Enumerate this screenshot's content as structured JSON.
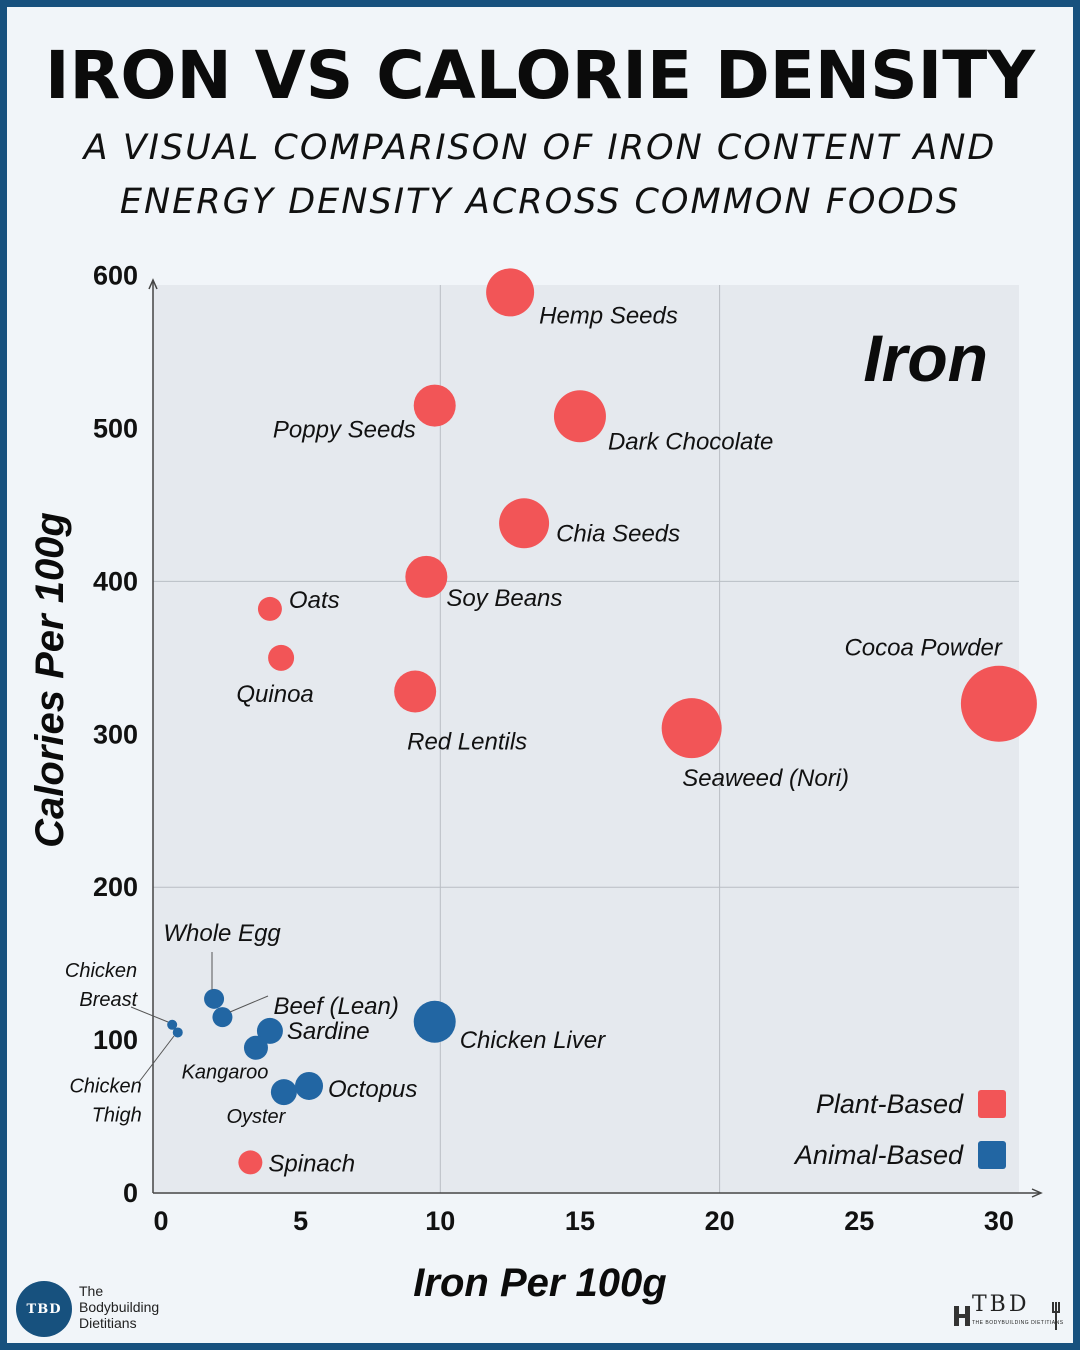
{
  "header": {
    "title": "IRON VS CALORIE DENSITY",
    "subtitle_line1": "A VISUAL COMPARISON OF IRON CONTENT AND",
    "subtitle_line2": "ENERGY DENSITY ACROSS COMMON FOODS"
  },
  "chart_data": {
    "type": "scatter",
    "title": "IRON VS CALORIE DENSITY",
    "subtitle": "A VISUAL COMPARISON OF IRON CONTENT AND ENERGY DENSITY ACROSS COMMON FOODS",
    "panel_label": "Iron",
    "xlabel": "Iron Per 100g",
    "ylabel": "Calories Per 100g",
    "xlim": [
      0,
      30
    ],
    "ylim": [
      0,
      600
    ],
    "x_ticks": [
      "0",
      "5",
      "10",
      "15",
      "20",
      "25",
      "30"
    ],
    "y_ticks": [
      "0",
      "100",
      "200",
      "300",
      "400",
      "500",
      "600"
    ],
    "grid": true,
    "legend_position": "bottom-right",
    "colors": {
      "Plant-Based": "#f25557",
      "Animal-Based": "#2266a3"
    },
    "series": [
      {
        "name": "Plant-Based",
        "points": [
          {
            "label": "Hemp Seeds",
            "x": 12.5,
            "y": 589
          },
          {
            "label": "Poppy Seeds",
            "x": 9.8,
            "y": 515
          },
          {
            "label": "Dark Chocolate",
            "x": 15.0,
            "y": 508
          },
          {
            "label": "Chia Seeds",
            "x": 13.0,
            "y": 438
          },
          {
            "label": "Soy Beans",
            "x": 9.5,
            "y": 403
          },
          {
            "label": "Oats",
            "x": 3.9,
            "y": 382
          },
          {
            "label": "Quinoa",
            "x": 4.3,
            "y": 350
          },
          {
            "label": "Red Lentils",
            "x": 9.1,
            "y": 328
          },
          {
            "label": "Seaweed (Nori)",
            "x": 19.0,
            "y": 304
          },
          {
            "label": "Cocoa Powder",
            "x": 30.0,
            "y": 320
          },
          {
            "label": "Spinach",
            "x": 3.2,
            "y": 20
          }
        ]
      },
      {
        "name": "Animal-Based",
        "points": [
          {
            "label": "Whole Egg",
            "x": 1.9,
            "y": 127
          },
          {
            "label": "Beef (Lean)",
            "x": 2.2,
            "y": 115
          },
          {
            "label": "Sardine",
            "x": 3.9,
            "y": 106
          },
          {
            "label": "Kangaroo",
            "x": 3.4,
            "y": 95
          },
          {
            "label": "Chicken Liver",
            "x": 9.8,
            "y": 112
          },
          {
            "label": "Octopus",
            "x": 5.3,
            "y": 70
          },
          {
            "label": "Oyster",
            "x": 4.4,
            "y": 66
          },
          {
            "label": "Chicken Breast",
            "x": 0.4,
            "y": 110
          },
          {
            "label": "Chicken Thigh",
            "x": 0.6,
            "y": 105
          }
        ]
      }
    ]
  },
  "legend": {
    "plant_label": "Plant-Based",
    "animal_label": "Animal-Based"
  },
  "footer": {
    "brand_line1": "The",
    "brand_line2": "Bodybuilding",
    "brand_line3": "Dietitians",
    "logo_left_text": "TBD",
    "logo_right_text": "TBD",
    "logo_right_sub": "THE BODYBUILDING DIETITIANS"
  }
}
